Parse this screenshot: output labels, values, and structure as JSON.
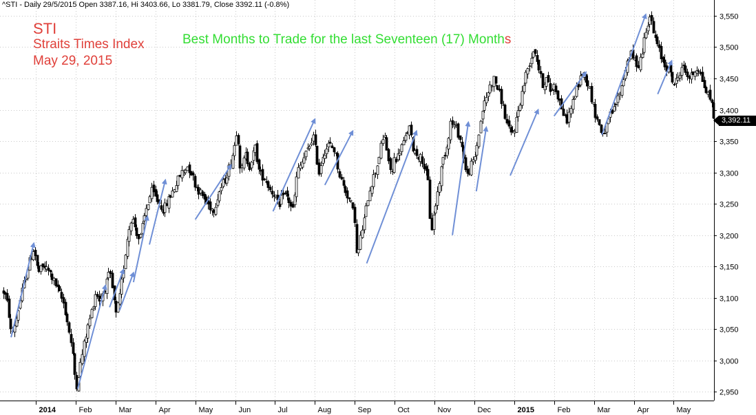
{
  "header": {
    "text": "^STI - Daily 29/5/2015 Open 3387.16, Hi 3403.66, Lo 3381.79, Close 3392.11 (-0.8%)"
  },
  "annotations": {
    "symbol": "STI",
    "name": "Straits Times Index",
    "date": "May 29, 2015",
    "headline_main": "Best Months to Trade for the last Seventeen (17) Month",
    "headline_tail": "s"
  },
  "last_price_label": "3,392.11",
  "colors": {
    "candles": "#000000",
    "arrows": "#6f8fd6",
    "grid": "#c8c8c8",
    "annotation_red": "#e0403a",
    "annotation_green": "#33dd33"
  },
  "chart_data": {
    "type": "candlestick",
    "ylim": [
      2940,
      3570
    ],
    "yticks": [
      2950,
      3000,
      3050,
      3100,
      3150,
      3200,
      3250,
      3300,
      3350,
      3400,
      3450,
      3500,
      3550
    ],
    "ytick_labels": [
      "2,950",
      "3,000",
      "3,050",
      "3,100",
      "3,150",
      "3,200",
      "3,250",
      "3,300",
      "3,350",
      "3,400",
      "3,450",
      "3,500",
      "3,550"
    ],
    "month_ticks": [
      {
        "label": "2014",
        "t": 0.0,
        "bold": true
      },
      {
        "label": "Feb",
        "t": 1.0
      },
      {
        "label": "Mar",
        "t": 2.0
      },
      {
        "label": "Apr",
        "t": 3.0
      },
      {
        "label": "May",
        "t": 4.0
      },
      {
        "label": "Jun",
        "t": 5.0
      },
      {
        "label": "Jul",
        "t": 6.0
      },
      {
        "label": "Aug",
        "t": 7.0
      },
      {
        "label": "Sep",
        "t": 8.0
      },
      {
        "label": "Oct",
        "t": 9.0
      },
      {
        "label": "Nov",
        "t": 10.0
      },
      {
        "label": "Dec",
        "t": 11.0
      },
      {
        "label": "2015",
        "t": 12.0,
        "bold": true
      },
      {
        "label": "Feb",
        "t": 13.0
      },
      {
        "label": "Mar",
        "t": 14.0
      },
      {
        "label": "Apr",
        "t": 15.0
      },
      {
        "label": "May",
        "t": 16.0
      }
    ],
    "t_range": [
      -0.82,
      17.2
    ],
    "path": [
      [
        -0.8,
        3110
      ],
      [
        -0.7,
        3085
      ],
      [
        -0.62,
        3040
      ],
      [
        -0.5,
        3065
      ],
      [
        -0.35,
        3110
      ],
      [
        -0.2,
        3150
      ],
      [
        -0.05,
        3180
      ],
      [
        0.05,
        3140
      ],
      [
        0.2,
        3150
      ],
      [
        0.35,
        3140
      ],
      [
        0.5,
        3120
      ],
      [
        0.7,
        3090
      ],
      [
        0.85,
        3040
      ],
      [
        0.95,
        2995
      ],
      [
        1.0,
        2955
      ],
      [
        1.1,
        2990
      ],
      [
        1.25,
        3040
      ],
      [
        1.4,
        3080
      ],
      [
        1.5,
        3110
      ],
      [
        1.6,
        3095
      ],
      [
        1.75,
        3120
      ],
      [
        1.85,
        3140
      ],
      [
        1.95,
        3100
      ],
      [
        2.0,
        3070
      ],
      [
        2.1,
        3100
      ],
      [
        2.2,
        3150
      ],
      [
        2.3,
        3200
      ],
      [
        2.4,
        3230
      ],
      [
        2.5,
        3210
      ],
      [
        2.6,
        3190
      ],
      [
        2.75,
        3240
      ],
      [
        2.9,
        3270
      ],
      [
        3.0,
        3260
      ],
      [
        3.1,
        3250
      ],
      [
        3.2,
        3240
      ],
      [
        3.35,
        3260
      ],
      [
        3.5,
        3280
      ],
      [
        3.65,
        3300
      ],
      [
        3.8,
        3310
      ],
      [
        3.9,
        3300
      ],
      [
        4.0,
        3280
      ],
      [
        4.1,
        3270
      ],
      [
        4.2,
        3260
      ],
      [
        4.3,
        3250
      ],
      [
        4.45,
        3240
      ],
      [
        4.6,
        3270
      ],
      [
        4.75,
        3290
      ],
      [
        4.9,
        3320
      ],
      [
        5.0,
        3350
      ],
      [
        5.05,
        3380
      ],
      [
        5.1,
        3320
      ],
      [
        5.15,
        3300
      ],
      [
        5.25,
        3330
      ],
      [
        5.35,
        3310
      ],
      [
        5.5,
        3340
      ],
      [
        5.6,
        3300
      ],
      [
        5.75,
        3290
      ],
      [
        5.9,
        3270
      ],
      [
        6.0,
        3265
      ],
      [
        6.1,
        3240
      ],
      [
        6.2,
        3270
      ],
      [
        6.3,
        3260
      ],
      [
        6.45,
        3240
      ],
      [
        6.55,
        3300
      ],
      [
        6.7,
        3320
      ],
      [
        6.85,
        3340
      ],
      [
        6.95,
        3360
      ],
      [
        7.0,
        3340
      ],
      [
        7.1,
        3300
      ],
      [
        7.2,
        3330
      ],
      [
        7.35,
        3345
      ],
      [
        7.5,
        3335
      ],
      [
        7.6,
        3300
      ],
      [
        7.7,
        3280
      ],
      [
        7.8,
        3265
      ],
      [
        7.9,
        3250
      ],
      [
        8.0,
        3225
      ],
      [
        8.05,
        3160
      ],
      [
        8.15,
        3200
      ],
      [
        8.25,
        3230
      ],
      [
        8.35,
        3270
      ],
      [
        8.45,
        3290
      ],
      [
        8.55,
        3310
      ],
      [
        8.65,
        3340
      ],
      [
        8.75,
        3360
      ],
      [
        8.85,
        3310
      ],
      [
        8.95,
        3300
      ],
      [
        9.0,
        3330
      ],
      [
        9.05,
        3320
      ],
      [
        9.15,
        3340
      ],
      [
        9.25,
        3350
      ],
      [
        9.35,
        3375
      ],
      [
        9.45,
        3340
      ],
      [
        9.55,
        3330
      ],
      [
        9.7,
        3320
      ],
      [
        9.85,
        3280
      ],
      [
        9.9,
        3200
      ],
      [
        10.0,
        3240
      ],
      [
        10.1,
        3280
      ],
      [
        10.2,
        3320
      ],
      [
        10.3,
        3340
      ],
      [
        10.4,
        3380
      ],
      [
        10.55,
        3370
      ],
      [
        10.65,
        3350
      ],
      [
        10.75,
        3320
      ],
      [
        10.8,
        3290
      ],
      [
        10.9,
        3310
      ],
      [
        11.0,
        3320
      ],
      [
        11.1,
        3360
      ],
      [
        11.2,
        3400
      ],
      [
        11.3,
        3420
      ],
      [
        11.4,
        3440
      ],
      [
        11.5,
        3450
      ],
      [
        11.6,
        3430
      ],
      [
        11.7,
        3410
      ],
      [
        11.8,
        3380
      ],
      [
        11.9,
        3360
      ],
      [
        12.0,
        3370
      ],
      [
        12.1,
        3400
      ],
      [
        12.2,
        3430
      ],
      [
        12.3,
        3460
      ],
      [
        12.4,
        3480
      ],
      [
        12.5,
        3500
      ],
      [
        12.6,
        3470
      ],
      [
        12.7,
        3440
      ],
      [
        12.8,
        3450
      ],
      [
        12.9,
        3430
      ],
      [
        13.0,
        3440
      ],
      [
        13.1,
        3420
      ],
      [
        13.2,
        3400
      ],
      [
        13.3,
        3380
      ],
      [
        13.4,
        3400
      ],
      [
        13.5,
        3420
      ],
      [
        13.6,
        3440
      ],
      [
        13.7,
        3460
      ],
      [
        13.8,
        3450
      ],
      [
        13.9,
        3430
      ],
      [
        14.0,
        3400
      ],
      [
        14.1,
        3380
      ],
      [
        14.2,
        3360
      ],
      [
        14.3,
        3370
      ],
      [
        14.4,
        3390
      ],
      [
        14.5,
        3400
      ],
      [
        14.6,
        3420
      ],
      [
        14.7,
        3440
      ],
      [
        14.8,
        3470
      ],
      [
        14.9,
        3490
      ],
      [
        15.0,
        3480
      ],
      [
        15.1,
        3470
      ],
      [
        15.2,
        3490
      ],
      [
        15.3,
        3530
      ],
      [
        15.4,
        3550
      ],
      [
        15.5,
        3520
      ],
      [
        15.6,
        3500
      ],
      [
        15.7,
        3480
      ],
      [
        15.8,
        3470
      ],
      [
        15.9,
        3460
      ],
      [
        16.0,
        3440
      ],
      [
        16.1,
        3450
      ],
      [
        16.2,
        3470
      ],
      [
        16.3,
        3460
      ],
      [
        16.4,
        3450
      ],
      [
        16.5,
        3460
      ],
      [
        16.6,
        3470
      ],
      [
        16.7,
        3450
      ],
      [
        16.8,
        3430
      ],
      [
        16.9,
        3420
      ],
      [
        16.95,
        3410
      ],
      [
        17.0,
        3392
      ]
    ],
    "arrows": [
      [
        [
          -0.62,
          3037
        ],
        [
          -0.05,
          3187
        ]
      ],
      [
        [
          1.05,
          2955
        ],
        [
          1.75,
          3120
        ]
      ],
      [
        [
          1.85,
          3085
        ],
        [
          2.2,
          3145
        ]
      ],
      [
        [
          2.1,
          3080
        ],
        [
          2.45,
          3140
        ]
      ],
      [
        [
          2.45,
          3125
        ],
        [
          2.8,
          3230
        ]
      ],
      [
        [
          2.85,
          3185
        ],
        [
          3.25,
          3288
        ]
      ],
      [
        [
          4.0,
          3225
        ],
        [
          4.9,
          3312
        ]
      ],
      [
        [
          5.95,
          3238
        ],
        [
          7.0,
          3385
        ]
      ],
      [
        [
          7.25,
          3280
        ],
        [
          7.95,
          3366
        ]
      ],
      [
        [
          8.3,
          3155
        ],
        [
          9.55,
          3366
        ]
      ],
      [
        [
          10.45,
          3200
        ],
        [
          10.85,
          3380
        ]
      ],
      [
        [
          11.05,
          3270
        ],
        [
          11.3,
          3372
        ]
      ],
      [
        [
          11.9,
          3295
        ],
        [
          12.6,
          3400
        ]
      ],
      [
        [
          13.0,
          3390
        ],
        [
          13.8,
          3460
        ]
      ],
      [
        [
          14.2,
          3360
        ],
        [
          15.3,
          3552
        ]
      ],
      [
        [
          15.6,
          3425
        ],
        [
          15.95,
          3478
        ]
      ]
    ],
    "last_close": 3392.11
  }
}
